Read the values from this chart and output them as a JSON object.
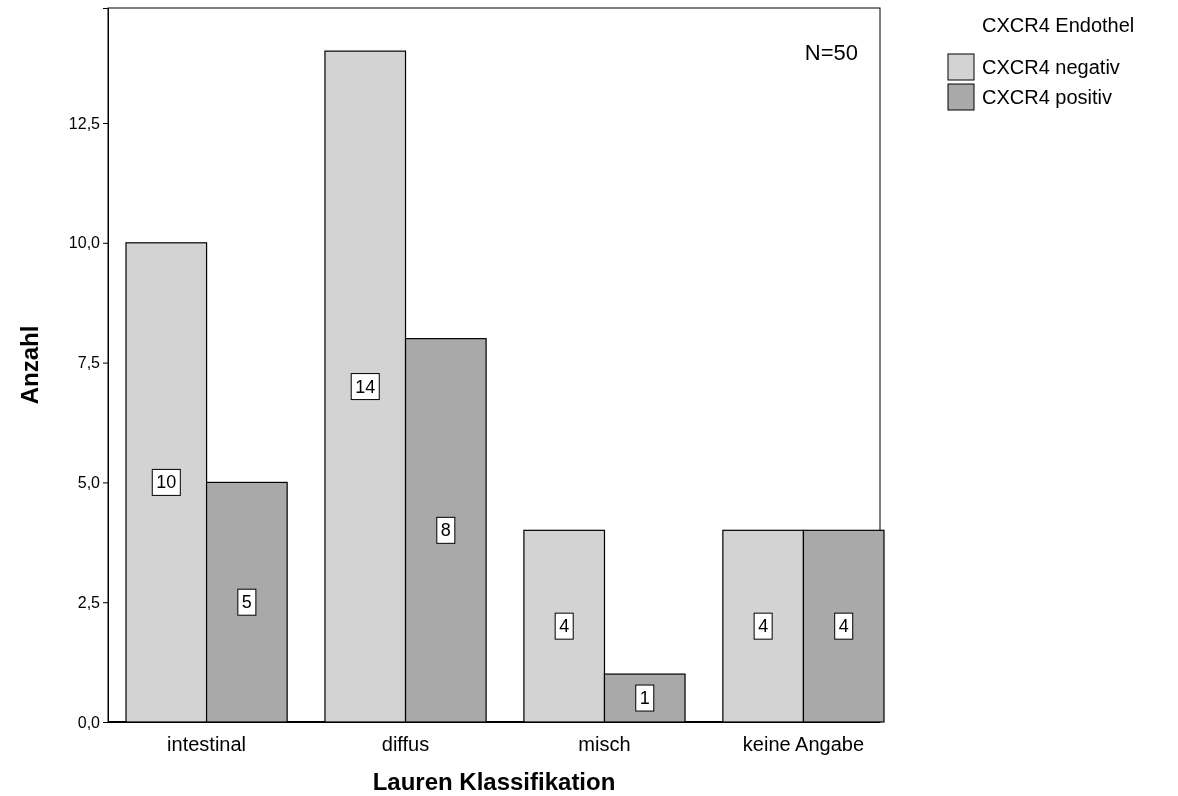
{
  "chart_data": {
    "type": "bar",
    "xlabel": "Lauren Klassifikation",
    "ylabel": "Anzahl",
    "legend_title": "CXCR4 Endothel",
    "categories": [
      "intestinal",
      "diffus",
      "misch",
      "keine Angabe"
    ],
    "series": [
      {
        "name": "CXCR4 negativ",
        "color": "#d3d3d3",
        "values": [
          10,
          14,
          4,
          4
        ]
      },
      {
        "name": "CXCR4 positiv",
        "color": "#a9a9a9",
        "values": [
          5,
          8,
          1,
          4
        ]
      }
    ],
    "ylim": [
      0,
      14.9
    ],
    "yticks": [
      {
        "value": 0,
        "label": "0,0"
      },
      {
        "value": 2.5,
        "label": "2,5"
      },
      {
        "value": 5,
        "label": "5,0"
      },
      {
        "value": 7.5,
        "label": "7,5"
      },
      {
        "value": 10,
        "label": "10,0"
      },
      {
        "value": 12.5,
        "label": "12,5"
      }
    ],
    "grid": false,
    "legend": "top right",
    "data_labels": true,
    "annotations": [
      "N=50"
    ]
  }
}
